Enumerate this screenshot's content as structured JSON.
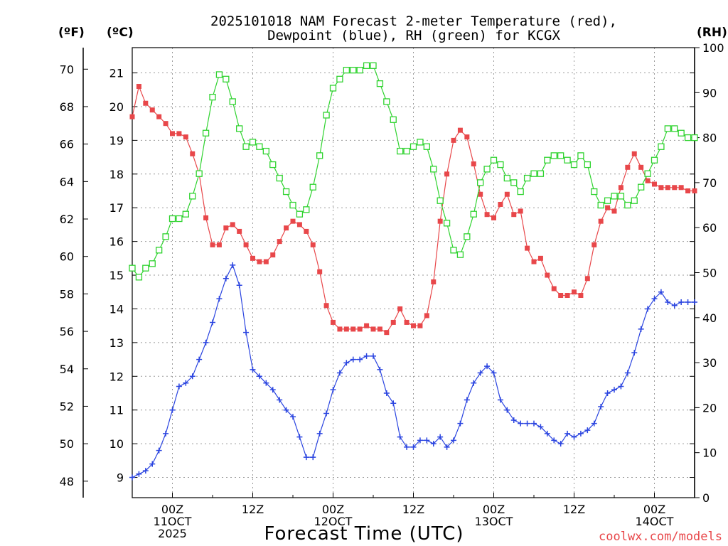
{
  "chart_data": {
    "type": "line",
    "title_lines": [
      "2025101018 NAM Forecast 2-meter Temperature (red),",
      "Dewpoint (blue), RH (green) for KCGX"
    ],
    "xlabel": "Forecast Time (UTC)",
    "credit": "coolwx.com/models",
    "units": {
      "f": "(ºF)",
      "c": "(ºC)",
      "rh": "(RH)"
    },
    "x_hours_range": [
      18,
      102
    ],
    "c_range": [
      8.4,
      21.75
    ],
    "rh_range": [
      0,
      100
    ],
    "c_ticks": [
      9,
      10,
      11,
      12,
      13,
      14,
      15,
      16,
      17,
      18,
      19,
      20,
      21
    ],
    "f_ticks": [
      48,
      50,
      52,
      54,
      56,
      58,
      60,
      62,
      64,
      66,
      68,
      70
    ],
    "rh_ticks": [
      0,
      10,
      20,
      30,
      40,
      50,
      60,
      70,
      80,
      90,
      100
    ],
    "x_ticks": [
      {
        "hour": 24,
        "lines": [
          "00Z",
          "11OCT",
          "2025"
        ]
      },
      {
        "hour": 36,
        "lines": [
          "12Z"
        ]
      },
      {
        "hour": 48,
        "lines": [
          "00Z",
          "12OCT"
        ]
      },
      {
        "hour": 60,
        "lines": [
          "12Z"
        ]
      },
      {
        "hour": 72,
        "lines": [
          "00Z",
          "13OCT"
        ]
      },
      {
        "hour": 84,
        "lines": [
          "12Z"
        ]
      },
      {
        "hour": 96,
        "lines": [
          "00Z",
          "14OCT"
        ]
      }
    ],
    "x_hours": [
      18,
      19,
      20,
      21,
      22,
      23,
      24,
      25,
      26,
      27,
      28,
      29,
      30,
      31,
      32,
      33,
      34,
      35,
      36,
      37,
      38,
      39,
      40,
      41,
      42,
      43,
      44,
      45,
      46,
      47,
      48,
      49,
      50,
      51,
      52,
      53,
      54,
      55,
      56,
      57,
      58,
      59,
      60,
      61,
      62,
      63,
      64,
      65,
      66,
      67,
      68,
      69,
      70,
      71,
      72,
      73,
      74,
      75,
      76,
      77,
      78,
      79,
      80,
      81,
      82,
      83,
      84,
      85,
      86,
      87,
      88,
      89,
      90,
      91,
      92,
      93,
      94,
      95,
      96,
      97,
      98,
      99,
      100,
      101,
      102
    ],
    "series": [
      {
        "name": "Temperature (°C)",
        "axis": "c",
        "color": "#e8474a",
        "marker": "filled-square",
        "values": [
          19.7,
          20.6,
          20.1,
          19.9,
          19.7,
          19.5,
          19.2,
          19.2,
          19.1,
          18.6,
          18.0,
          16.7,
          15.9,
          15.9,
          16.4,
          16.5,
          16.3,
          15.9,
          15.5,
          15.4,
          15.4,
          15.6,
          16.0,
          16.4,
          16.6,
          16.5,
          16.3,
          15.9,
          15.1,
          14.1,
          13.6,
          13.4,
          13.4,
          13.4,
          13.4,
          13.5,
          13.4,
          13.4,
          13.3,
          13.6,
          14.0,
          13.6,
          13.5,
          13.5,
          13.8,
          14.8,
          16.6,
          18.0,
          19.0,
          19.3,
          19.1,
          18.3,
          17.4,
          16.8,
          16.7,
          17.1,
          17.4,
          16.8,
          16.9,
          15.8,
          15.4,
          15.5,
          15.0,
          14.6,
          14.4,
          14.4,
          14.5,
          14.4,
          14.9,
          15.9,
          16.6,
          17.0,
          16.9,
          17.6,
          18.2,
          18.6,
          18.2,
          17.8,
          17.7,
          17.6,
          17.6,
          17.6,
          17.6,
          17.5,
          17.5
        ]
      },
      {
        "name": "Dewpoint (°C)",
        "axis": "c",
        "color": "#2a44e0",
        "marker": "plus",
        "values": [
          9.0,
          9.1,
          9.2,
          9.4,
          9.8,
          10.3,
          11.0,
          11.7,
          11.8,
          12.0,
          12.5,
          13.0,
          13.6,
          14.3,
          14.9,
          15.3,
          14.7,
          13.3,
          12.2,
          12.0,
          11.8,
          11.6,
          11.3,
          11.0,
          10.8,
          10.2,
          9.6,
          9.6,
          10.3,
          10.9,
          11.6,
          12.1,
          12.4,
          12.5,
          12.5,
          12.6,
          12.6,
          12.2,
          11.5,
          11.2,
          10.2,
          9.9,
          9.9,
          10.1,
          10.1,
          10.0,
          10.2,
          9.9,
          10.1,
          10.6,
          11.3,
          11.8,
          12.1,
          12.3,
          12.1,
          11.3,
          11.0,
          10.7,
          10.6,
          10.6,
          10.6,
          10.5,
          10.3,
          10.1,
          10.0,
          10.3,
          10.2,
          10.3,
          10.4,
          10.6,
          11.1,
          11.5,
          11.6,
          11.7,
          12.1,
          12.7,
          13.4,
          14.0,
          14.3,
          14.5,
          14.2,
          14.1,
          14.2,
          14.2,
          14.2
        ]
      },
      {
        "name": "RH (%)",
        "axis": "rh",
        "color": "#2fd32f",
        "marker": "open-square",
        "values": [
          51,
          49,
          51,
          52,
          55,
          58,
          62,
          62,
          63,
          67,
          72,
          81,
          89,
          94,
          93,
          88,
          82,
          78,
          79,
          78,
          77,
          74,
          71,
          68,
          65,
          63,
          64,
          69,
          76,
          85,
          91,
          93,
          95,
          95,
          95,
          96,
          96,
          92,
          88,
          84,
          77,
          77,
          78,
          79,
          78,
          73,
          66,
          61,
          55,
          54,
          58,
          63,
          70,
          73,
          75,
          74,
          71,
          70,
          68,
          71,
          72,
          72,
          75,
          76,
          76,
          75,
          74,
          76,
          74,
          68,
          65,
          66,
          67,
          67,
          65,
          66,
          69,
          72,
          75,
          78,
          82,
          82,
          81,
          80,
          80
        ]
      }
    ]
  }
}
